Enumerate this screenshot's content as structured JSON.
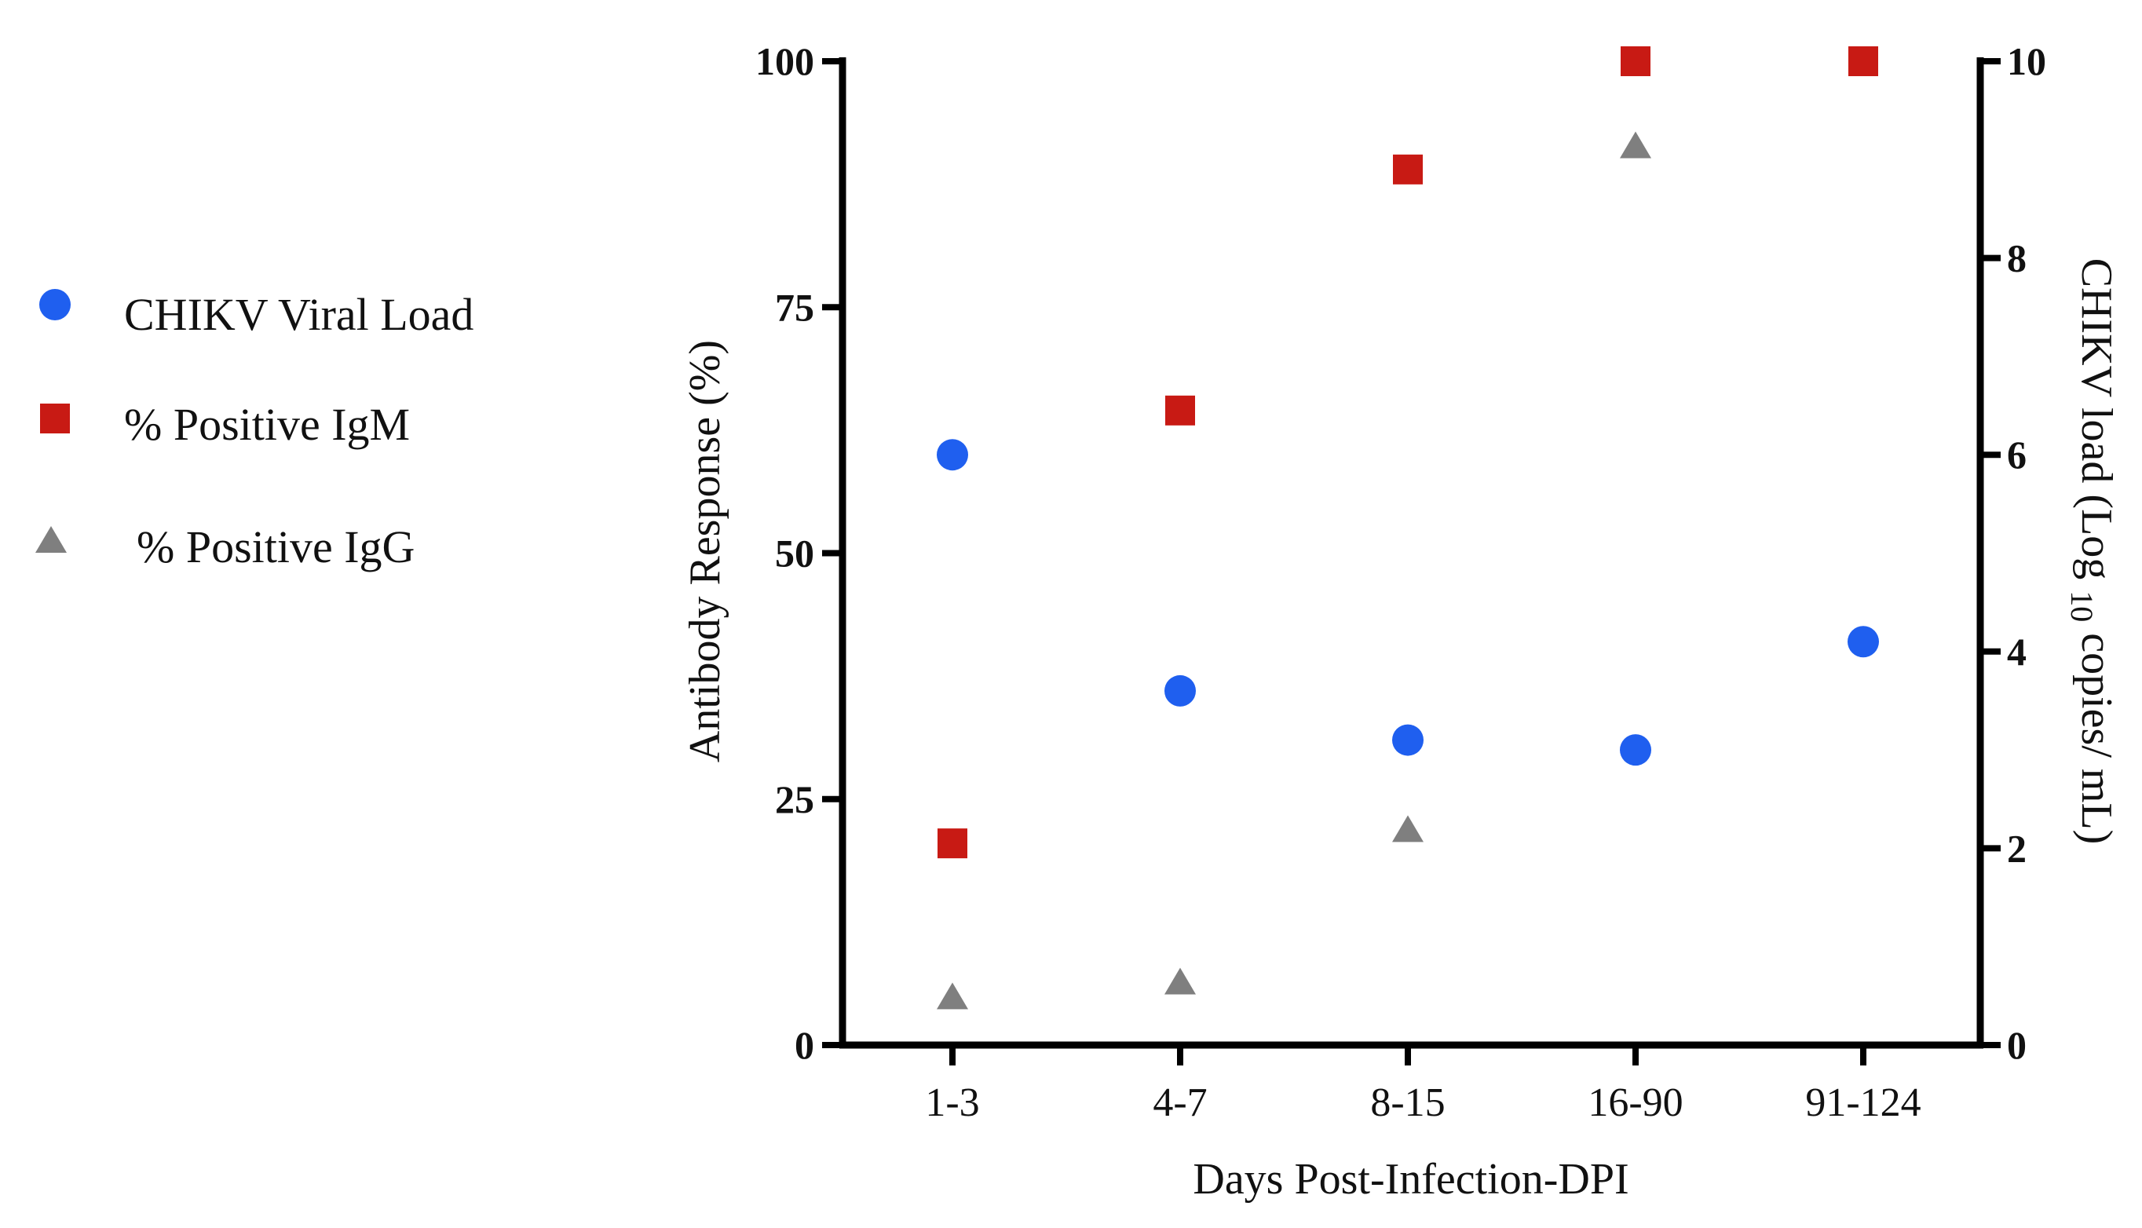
{
  "chart_data": {
    "type": "scatter",
    "categories": [
      "1-3",
      "4-7",
      "8-15",
      "16-90",
      "91-124"
    ],
    "xlabel": "Days Post-Infection-DPI",
    "ylabel_left": "Antibody Response (%)",
    "ylabel_right_parts": [
      "CHIKV load (Log ",
      "10",
      " copies/ mL)"
    ],
    "ylim_left": [
      0,
      100
    ],
    "ylim_right": [
      0,
      10
    ],
    "yticks_left": [
      "0",
      "25",
      "50",
      "75",
      "100"
    ],
    "yticks_right": [
      "0",
      "2",
      "4",
      "6",
      "8",
      "10"
    ],
    "legend_position": "left",
    "series": [
      {
        "name": "CHIKV Viral Load",
        "axis": "right",
        "marker": "circle",
        "color": "#1f5fef",
        "values": [
          6.0,
          3.6,
          3.1,
          3.0,
          4.1
        ]
      },
      {
        "name": "% Positive IgM",
        "axis": "left",
        "marker": "square",
        "color": "#c81a14",
        "values": [
          20.5,
          64.5,
          89,
          100,
          100
        ]
      },
      {
        "name": "% Positive IgG",
        "axis": "left",
        "marker": "triangle",
        "color": "#7f7f7f",
        "values": [
          5,
          6.5,
          22,
          91.5,
          null
        ]
      }
    ]
  }
}
